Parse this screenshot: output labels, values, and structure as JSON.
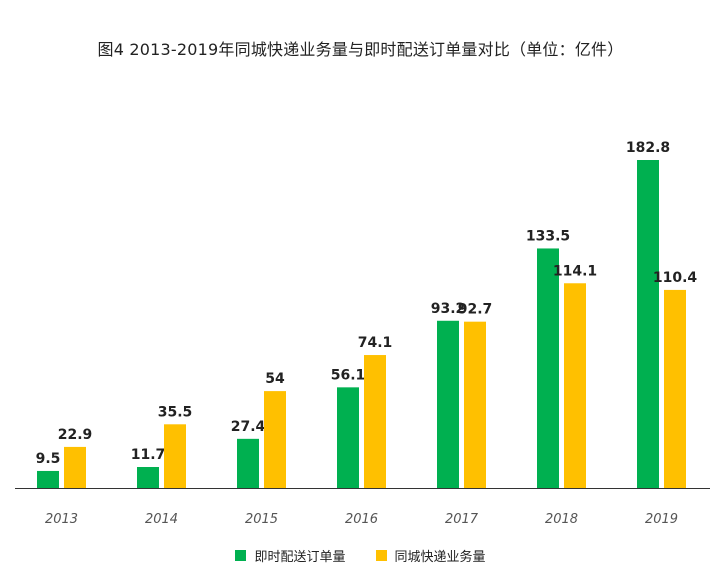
{
  "chart_data": {
    "type": "bar",
    "title": "图4 2013-2019年同城快递业务量与即时配送订单量对比（单位：亿件）",
    "categories": [
      "2013",
      "2014",
      "2015",
      "2016",
      "2017",
      "2018",
      "2019"
    ],
    "series": [
      {
        "name": "即时配送订单量",
        "color": "#00b050",
        "values": [
          9.5,
          11.7,
          27.4,
          56.1,
          93.2,
          133.5,
          182.8
        ]
      },
      {
        "name": "同城快递业务量",
        "color": "#ffc000",
        "values": [
          22.9,
          35.5,
          54,
          74.1,
          92.7,
          114.1,
          110.4
        ]
      }
    ],
    "ylim": [
      0,
      182.8
    ],
    "grid": false,
    "legend_position": "bottom"
  }
}
